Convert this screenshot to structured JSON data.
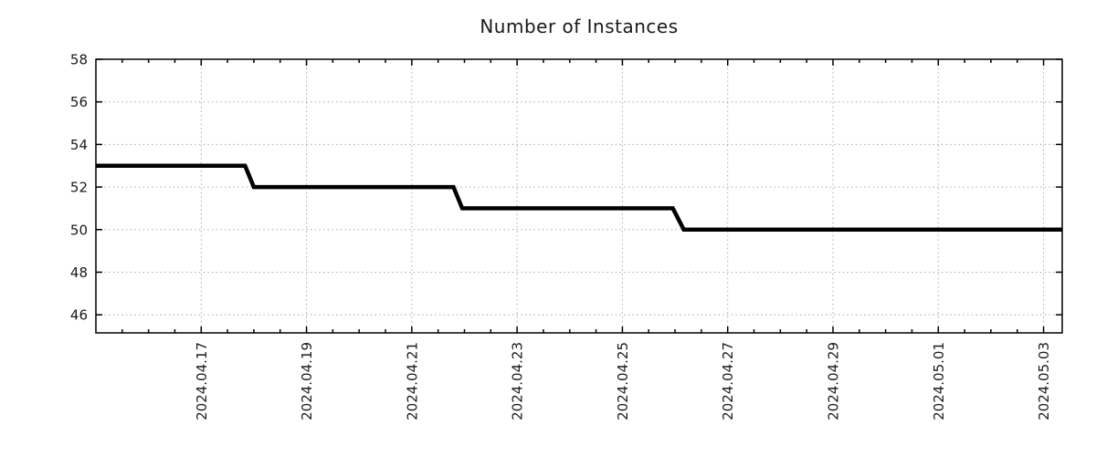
{
  "page": {
    "background_color": "#ffffff"
  },
  "chart_data": {
    "type": "line",
    "subtype": "step",
    "title": "Number of Instances",
    "xlabel": "",
    "ylabel": "",
    "legend_position": "none",
    "grid": {
      "show": true,
      "style": "dotted",
      "color": "#a8a8a8"
    },
    "axis_color": "#000000",
    "text_color": "#1a1a1a",
    "x_axis": {
      "unit": "hours since 2024-04-15 00:00",
      "range_hours": [
        0,
        440.5
      ],
      "minor_tick_interval_hours": 12,
      "major_tick_interval_hours": 48,
      "label_rotation_deg": 90,
      "major_ticks": [
        {
          "t": 48,
          "label": "2024.04.17"
        },
        {
          "t": 96,
          "label": "2024.04.19"
        },
        {
          "t": 144,
          "label": "2024.04.21"
        },
        {
          "t": 192,
          "label": "2024.04.23"
        },
        {
          "t": 240,
          "label": "2024.04.25"
        },
        {
          "t": 288,
          "label": "2024.04.27"
        },
        {
          "t": 336,
          "label": "2024.04.29"
        },
        {
          "t": 384,
          "label": "2024.05.01"
        },
        {
          "t": 432,
          "label": "2024.05.03"
        }
      ]
    },
    "y_axis": {
      "range": [
        45.15,
        58
      ],
      "ticks": [
        46,
        48,
        50,
        52,
        54,
        56,
        58
      ]
    },
    "series": [
      {
        "name": "instances",
        "color": "#000000",
        "line_width": 4.5,
        "points_hours_value": [
          [
            0,
            53
          ],
          [
            68,
            53
          ],
          [
            72,
            52
          ],
          [
            163,
            52
          ],
          [
            167,
            51
          ],
          [
            263,
            51
          ],
          [
            268,
            50
          ],
          [
            440.5,
            50
          ]
        ]
      }
    ],
    "steps_readable": [
      {
        "from": "2024-04-15",
        "to": "2024-04-18",
        "value": 53
      },
      {
        "from": "2024-04-18",
        "to": "2024-04-22",
        "value": 52
      },
      {
        "from": "2024-04-22",
        "to": "2024-04-26",
        "value": 51
      },
      {
        "from": "2024-04-26",
        "to": "2024-05-03",
        "value": 50
      }
    ]
  }
}
